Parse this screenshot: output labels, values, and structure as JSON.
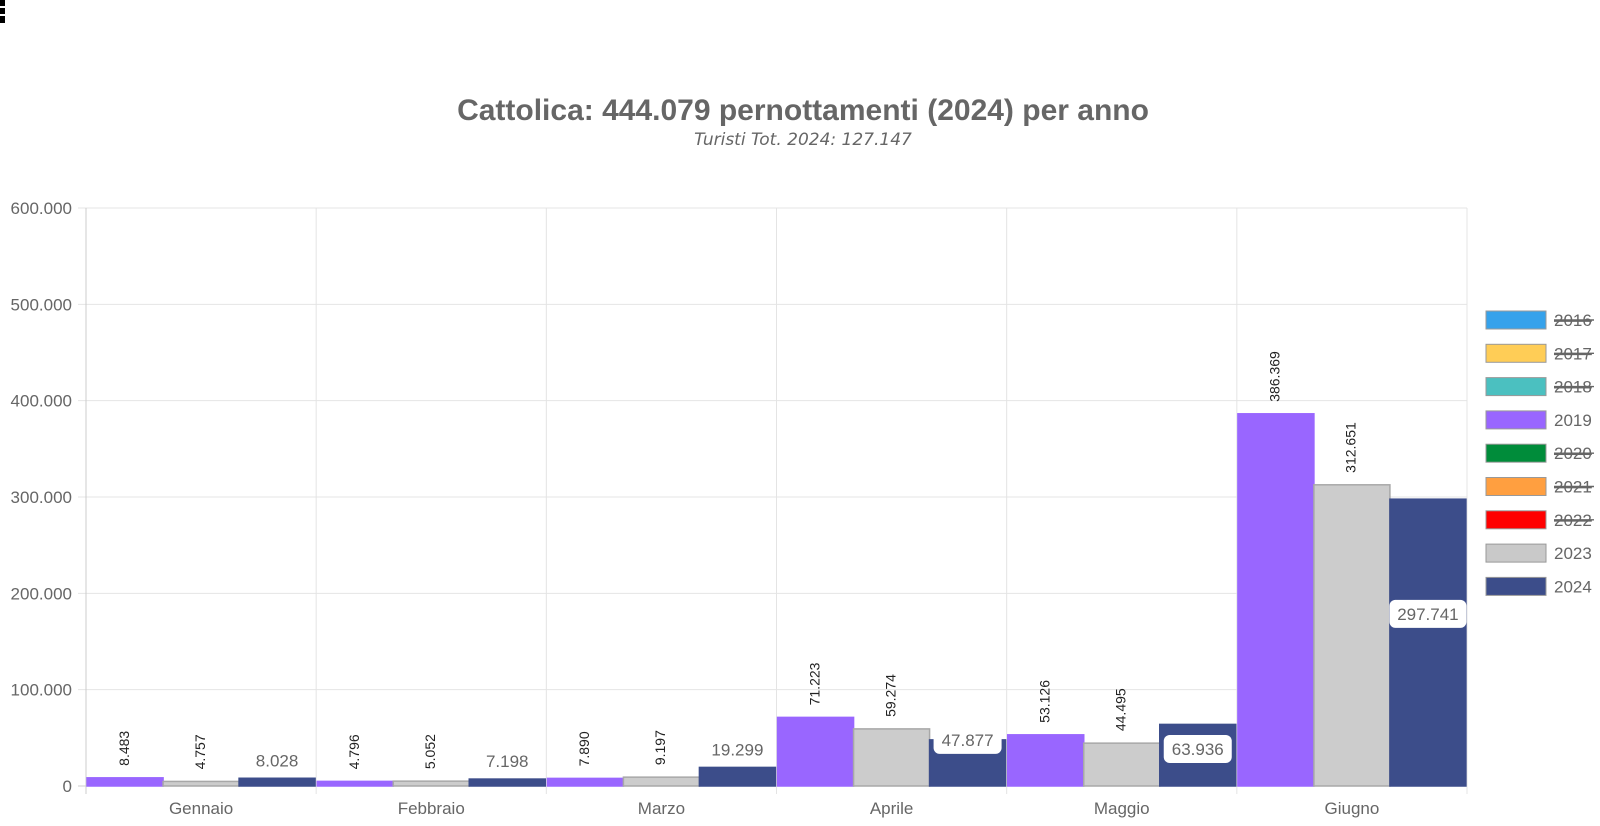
{
  "chart_data": {
    "type": "bar",
    "title": "Cattolica: 444.079 pernottamenti (2024) per anno",
    "subtitle": "Turisti Tot. 2024: 127.147",
    "categories": [
      "Gennaio",
      "Febbraio",
      "Marzo",
      "Aprile",
      "Maggio",
      "Giugno"
    ],
    "ylim": [
      0,
      600000
    ],
    "yticks": [
      0,
      100000,
      200000,
      300000,
      400000,
      500000,
      600000
    ],
    "ytick_labels": [
      "0",
      "100.000",
      "200.000",
      "300.000",
      "400.000",
      "500.000",
      "600.000"
    ],
    "grid": true,
    "legend_position": "right",
    "legend": [
      {
        "name": "2016",
        "color": "#36a2eb",
        "hidden": true
      },
      {
        "name": "2017",
        "color": "#ffcd56",
        "hidden": true
      },
      {
        "name": "2018",
        "color": "#4bc0c0",
        "hidden": true
      },
      {
        "name": "2019",
        "color": "#9966ff",
        "hidden": false
      },
      {
        "name": "2020",
        "color": "#008c3a",
        "hidden": true
      },
      {
        "name": "2021",
        "color": "#ff9f40",
        "hidden": true
      },
      {
        "name": "2022",
        "color": "#ff0000",
        "hidden": true
      },
      {
        "name": "2023",
        "color": "#c9c9c9",
        "hidden": false
      },
      {
        "name": "2024",
        "color": "#3c4d8a",
        "hidden": false
      }
    ],
    "series": [
      {
        "name": "2019",
        "color": "#9966ff",
        "border": "#9966ff",
        "label_style": "rotated",
        "values": [
          8483,
          4796,
          7890,
          71223,
          53126,
          386369
        ],
        "labels": [
          "8.483",
          "4.796",
          "7.890",
          "71.223",
          "53.126",
          "386.369"
        ]
      },
      {
        "name": "2023",
        "color": "#cccccc",
        "border": "#a8a8a8",
        "label_style": "rotated",
        "values": [
          4757,
          5052,
          9197,
          59274,
          44495,
          312651
        ],
        "labels": [
          "4.757",
          "5.052",
          "9.197",
          "59.274",
          "44.495",
          "312.651"
        ]
      },
      {
        "name": "2024",
        "color": "#3c4d8a",
        "border": "#3c4d8a",
        "label_style": "boxed",
        "values": [
          8028,
          7198,
          19299,
          47877,
          63936,
          297741
        ],
        "labels": [
          "8.028",
          "7.198",
          "19.299",
          "47.877",
          "63.936",
          "297.741"
        ]
      }
    ]
  }
}
